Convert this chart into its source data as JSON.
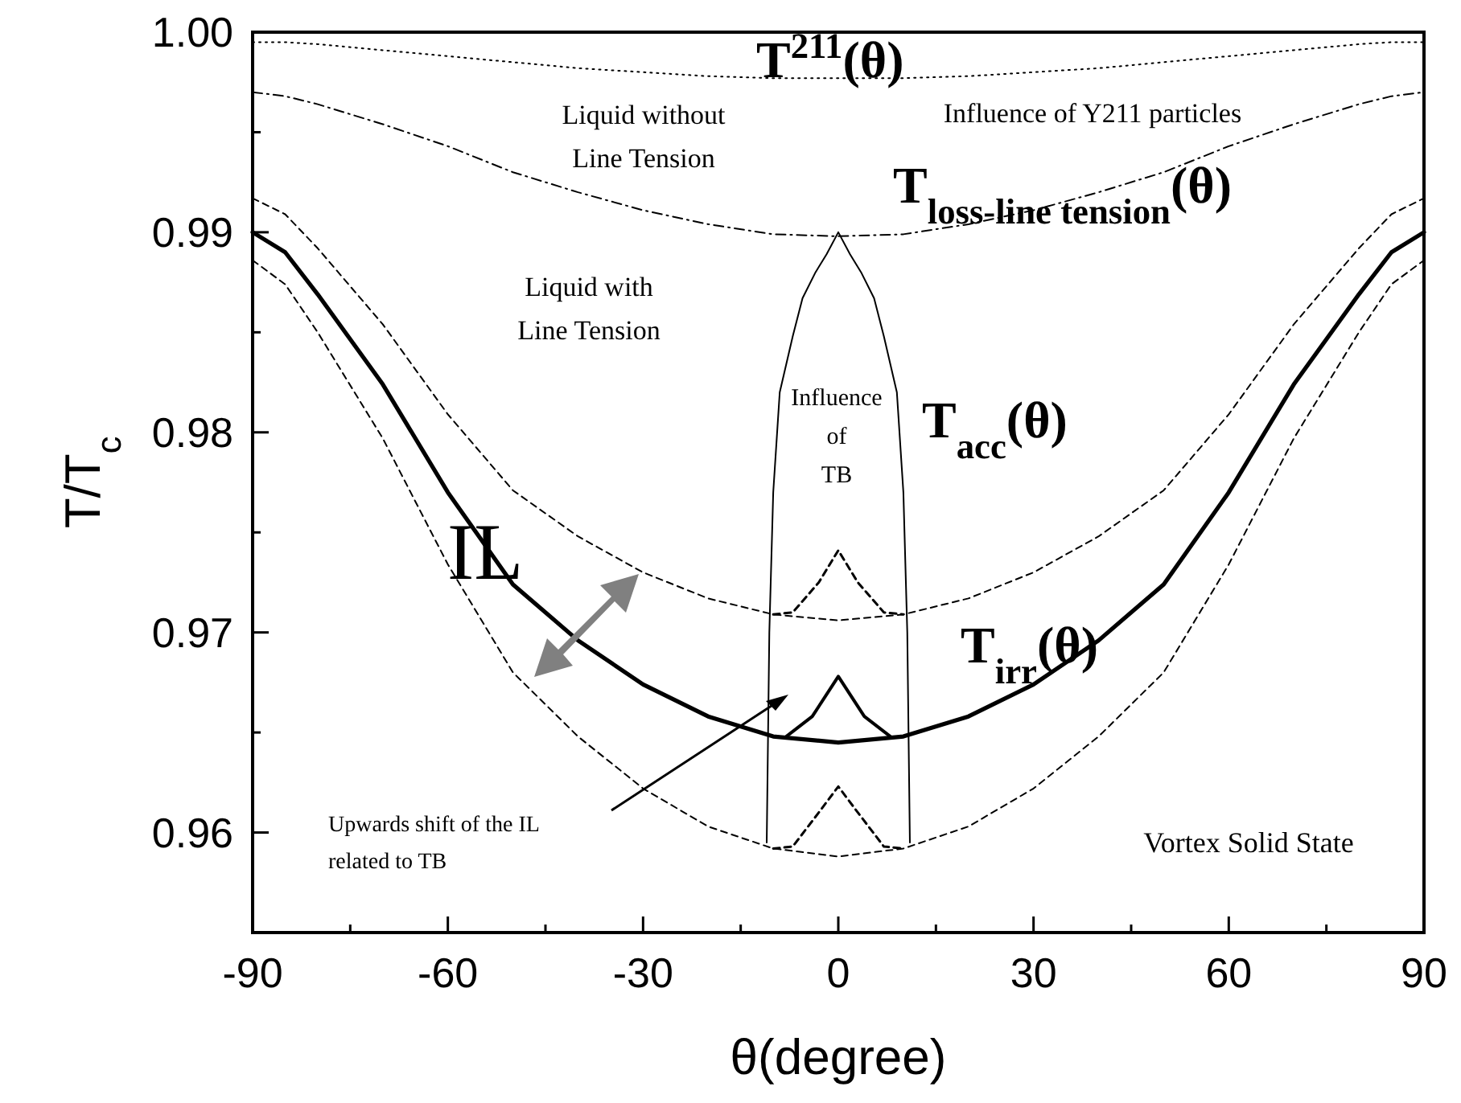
{
  "chart_data": {
    "type": "line",
    "xlabel": "θ(degree)",
    "ylabel": "T/T$_{c}$",
    "xlim": [
      -90,
      90
    ],
    "xticks": [
      -90,
      {
        "value": -75,
        "label": null
      },
      -60,
      {
        "value": -45,
        "label": null
      },
      -30,
      {
        "value": -15,
        "label": null
      },
      0,
      {
        "value": 15,
        "label": null
      },
      30,
      {
        "value": 45,
        "label": null
      },
      60,
      {
        "value": 75,
        "label": null
      },
      90
    ],
    "ylim": [
      0.955,
      1.0
    ],
    "yticks": [
      {
        "value": 0.96,
        "label": "0.96"
      },
      {
        "value": 0.965,
        "label": null
      },
      {
        "value": 0.97,
        "label": "0.97"
      },
      {
        "value": 0.975,
        "label": null
      },
      {
        "value": 0.98,
        "label": "0.98"
      },
      {
        "value": 0.985,
        "label": null
      },
      {
        "value": 0.99,
        "label": "0.99"
      },
      {
        "value": 0.995,
        "label": null
      },
      {
        "value": 1.0,
        "label": "1.00"
      }
    ],
    "grid": false,
    "marker": "none",
    "x": [
      -90,
      -85,
      -80,
      -70,
      -60,
      -50,
      -40,
      -30,
      -20,
      -10,
      0,
      10,
      20,
      30,
      40,
      50,
      60,
      70,
      80,
      85,
      90
    ],
    "series": [
      {
        "name": "T$^{211}$(θ)",
        "color": "#000000",
        "line_style": "dotted",
        "values": [
          0.9995,
          0.9995,
          0.9994,
          0.9991,
          0.9988,
          0.9985,
          0.9982,
          0.998,
          0.9978,
          0.9977,
          0.9977,
          0.9977,
          0.9978,
          0.998,
          0.9982,
          0.9985,
          0.9988,
          0.9991,
          0.9994,
          0.9995,
          0.9995
        ]
      },
      {
        "name": "T$_{loss-line tension}$(θ)",
        "color": "#000000",
        "line_style": "dashdot",
        "values": [
          0.997,
          0.9968,
          0.9964,
          0.9954,
          0.9943,
          0.993,
          0.992,
          0.9911,
          0.9904,
          0.9899,
          0.9898,
          0.9899,
          0.9904,
          0.9911,
          0.992,
          0.993,
          0.9943,
          0.9954,
          0.9964,
          0.9968,
          0.997
        ]
      },
      {
        "name": "T$_{acc}$(θ)",
        "color": "#000000",
        "line_style": "dashed",
        "values": [
          0.9917,
          0.9909,
          0.9892,
          0.9854,
          0.9809,
          0.9771,
          0.9748,
          0.973,
          0.9717,
          0.9709,
          0.9706,
          0.9709,
          0.9717,
          0.973,
          0.9748,
          0.9771,
          0.9809,
          0.9854,
          0.9892,
          0.9909,
          0.9917
        ]
      },
      {
        "name": "T$_{irr}$(θ)",
        "color": "#000000",
        "line_style": "solid",
        "values": [
          0.99,
          0.989,
          0.9869,
          0.9824,
          0.977,
          0.9724,
          0.9696,
          0.9674,
          0.9658,
          0.9648,
          0.9645,
          0.9648,
          0.9658,
          0.9674,
          0.9696,
          0.9724,
          0.977,
          0.9824,
          0.9869,
          0.989,
          0.99
        ]
      },
      {
        "color": "#000000",
        "line_style": "dashed",
        "values": [
          0.9886,
          0.9874,
          0.985,
          0.9797,
          0.9734,
          0.968,
          0.9648,
          0.9622,
          0.9603,
          0.9592,
          0.9588,
          0.9592,
          0.9603,
          0.9622,
          0.9648,
          0.968,
          0.9734,
          0.9797,
          0.985,
          0.9874,
          0.9886
        ]
      },
      {
        "color": "#000000",
        "line_style": "solid",
        "x": [
          -11,
          -10.6,
          -10,
          -9,
          -7,
          -5.5,
          -3.5,
          -1.8,
          0,
          1.8,
          3.5,
          5.5,
          7,
          9,
          10,
          10.6,
          11
        ],
        "values": [
          0.9595,
          0.97,
          0.977,
          0.982,
          0.9848,
          0.9867,
          0.988,
          0.9889,
          0.99,
          0.9889,
          0.988,
          0.9867,
          0.9848,
          0.982,
          0.977,
          0.97,
          0.9595
        ]
      },
      {
        "color": "#000000",
        "line_style": "dashed",
        "x": [
          -10,
          -7,
          -3,
          0,
          3,
          7,
          10
        ],
        "values": [
          0.9709,
          0.971,
          0.9725,
          0.9741,
          0.9725,
          0.971,
          0.9709
        ]
      },
      {
        "color": "#000000",
        "line_style": "solid",
        "x": [
          -8,
          -4,
          0,
          4,
          8
        ],
        "values": [
          0.9648,
          0.9658,
          0.9678,
          0.9658,
          0.9648
        ]
      },
      {
        "color": "#000000",
        "line_style": "dashed",
        "x": [
          -10,
          -7,
          -3,
          0,
          3,
          7,
          10
        ],
        "values": [
          0.9592,
          0.9593,
          0.961,
          0.9623,
          0.961,
          0.9593,
          0.9592
        ]
      }
    ],
    "annotations": [
      "Liquid without\nLine Tension",
      "Influence of Y211 particles",
      "Liquid with\nLine Tension",
      "Influence\nof\nTB",
      "IL",
      "Upwards shift of the IL\nrelated to TB",
      "Vortex Solid State"
    ]
  }
}
